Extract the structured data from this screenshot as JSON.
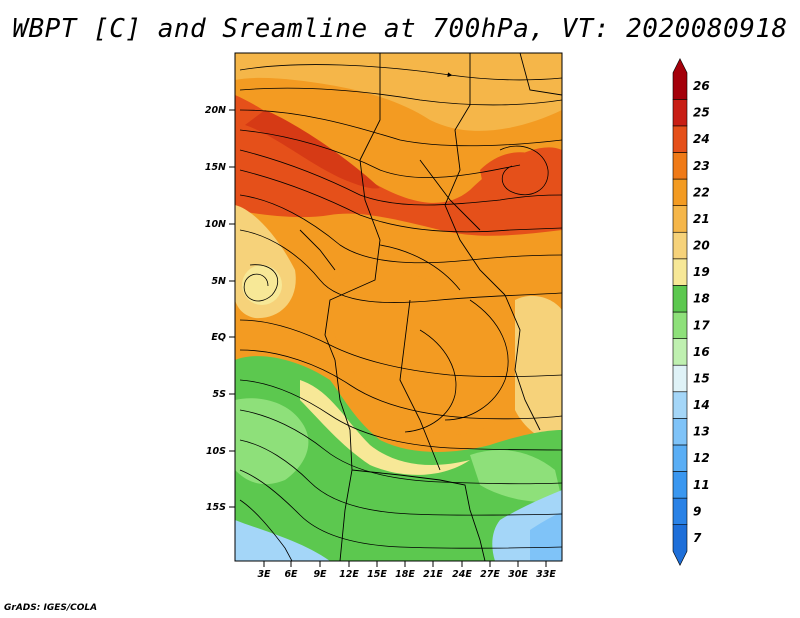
{
  "title": "WBPT [C] and Sreamline at 700hPa, VT: 2020080918",
  "footer": "GrADS: IGES/COLA",
  "map": {
    "lat_labels": [
      "20N",
      "15N",
      "10N",
      "5N",
      "EQ",
      "5S",
      "10S",
      "15S"
    ],
    "lon_labels": [
      "3E",
      "6E",
      "9E",
      "12E",
      "15E",
      "18E",
      "21E",
      "24E",
      "27E",
      "30E",
      "33E"
    ]
  },
  "colorbar": {
    "levels": [
      "7",
      "9",
      "11",
      "12",
      "13",
      "14",
      "15",
      "16",
      "17",
      "18",
      "19",
      "20",
      "21",
      "22",
      "23",
      "24",
      "25",
      "26"
    ],
    "colors": [
      "#1e6fd9",
      "#2a82e6",
      "#3a97f0",
      "#5aaef5",
      "#7fc3f8",
      "#a4d6f8",
      "#dff2f7",
      "#bff0b0",
      "#8ee07a",
      "#5cc84f",
      "#f7e897",
      "#f6d27a",
      "#f5b649",
      "#f39b22",
      "#ef7a17",
      "#e5501a",
      "#c81e14",
      "#a4000a"
    ]
  }
}
